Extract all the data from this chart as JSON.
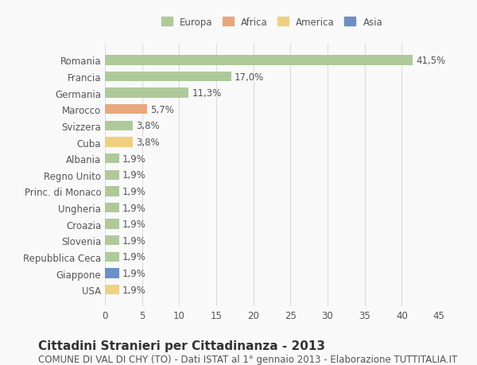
{
  "categories": [
    "Romania",
    "Francia",
    "Germania",
    "Marocco",
    "Svizzera",
    "Cuba",
    "Albania",
    "Regno Unito",
    "Princ. di Monaco",
    "Ungheria",
    "Croazia",
    "Slovenia",
    "Repubblica Ceca",
    "Giappone",
    "USA"
  ],
  "values": [
    41.5,
    17.0,
    11.3,
    5.7,
    3.8,
    3.8,
    1.9,
    1.9,
    1.9,
    1.9,
    1.9,
    1.9,
    1.9,
    1.9,
    1.9
  ],
  "labels": [
    "41,5%",
    "17,0%",
    "11,3%",
    "5,7%",
    "3,8%",
    "3,8%",
    "1,9%",
    "1,9%",
    "1,9%",
    "1,9%",
    "1,9%",
    "1,9%",
    "1,9%",
    "1,9%",
    "1,9%"
  ],
  "colors": [
    "#aec99a",
    "#aec99a",
    "#aec99a",
    "#e8a87c",
    "#aec99a",
    "#f0d080",
    "#aec99a",
    "#aec99a",
    "#aec99a",
    "#aec99a",
    "#aec99a",
    "#aec99a",
    "#aec99a",
    "#6b8fc7",
    "#f0d080"
  ],
  "continent": [
    "Europa",
    "Europa",
    "Europa",
    "Africa",
    "Europa",
    "America",
    "Europa",
    "Europa",
    "Europa",
    "Europa",
    "Europa",
    "Europa",
    "Europa",
    "Asia",
    "America"
  ],
  "legend_labels": [
    "Europa",
    "Africa",
    "America",
    "Asia"
  ],
  "legend_colors": [
    "#aec99a",
    "#e8a87c",
    "#f0d080",
    "#6b8fc7"
  ],
  "xlim": [
    0,
    45
  ],
  "xticks": [
    0,
    5,
    10,
    15,
    20,
    25,
    30,
    35,
    40,
    45
  ],
  "title": "Cittadini Stranieri per Cittadinanza - 2013",
  "subtitle": "COMUNE DI VAL DI CHY (TO) - Dati ISTAT al 1° gennaio 2013 - Elaborazione TUTTITALIA.IT",
  "background_color": "#f9f9f9",
  "grid_color": "#dddddd",
  "bar_height": 0.6,
  "label_fontsize": 8.5,
  "tick_fontsize": 8.5,
  "title_fontsize": 11,
  "subtitle_fontsize": 8.5
}
